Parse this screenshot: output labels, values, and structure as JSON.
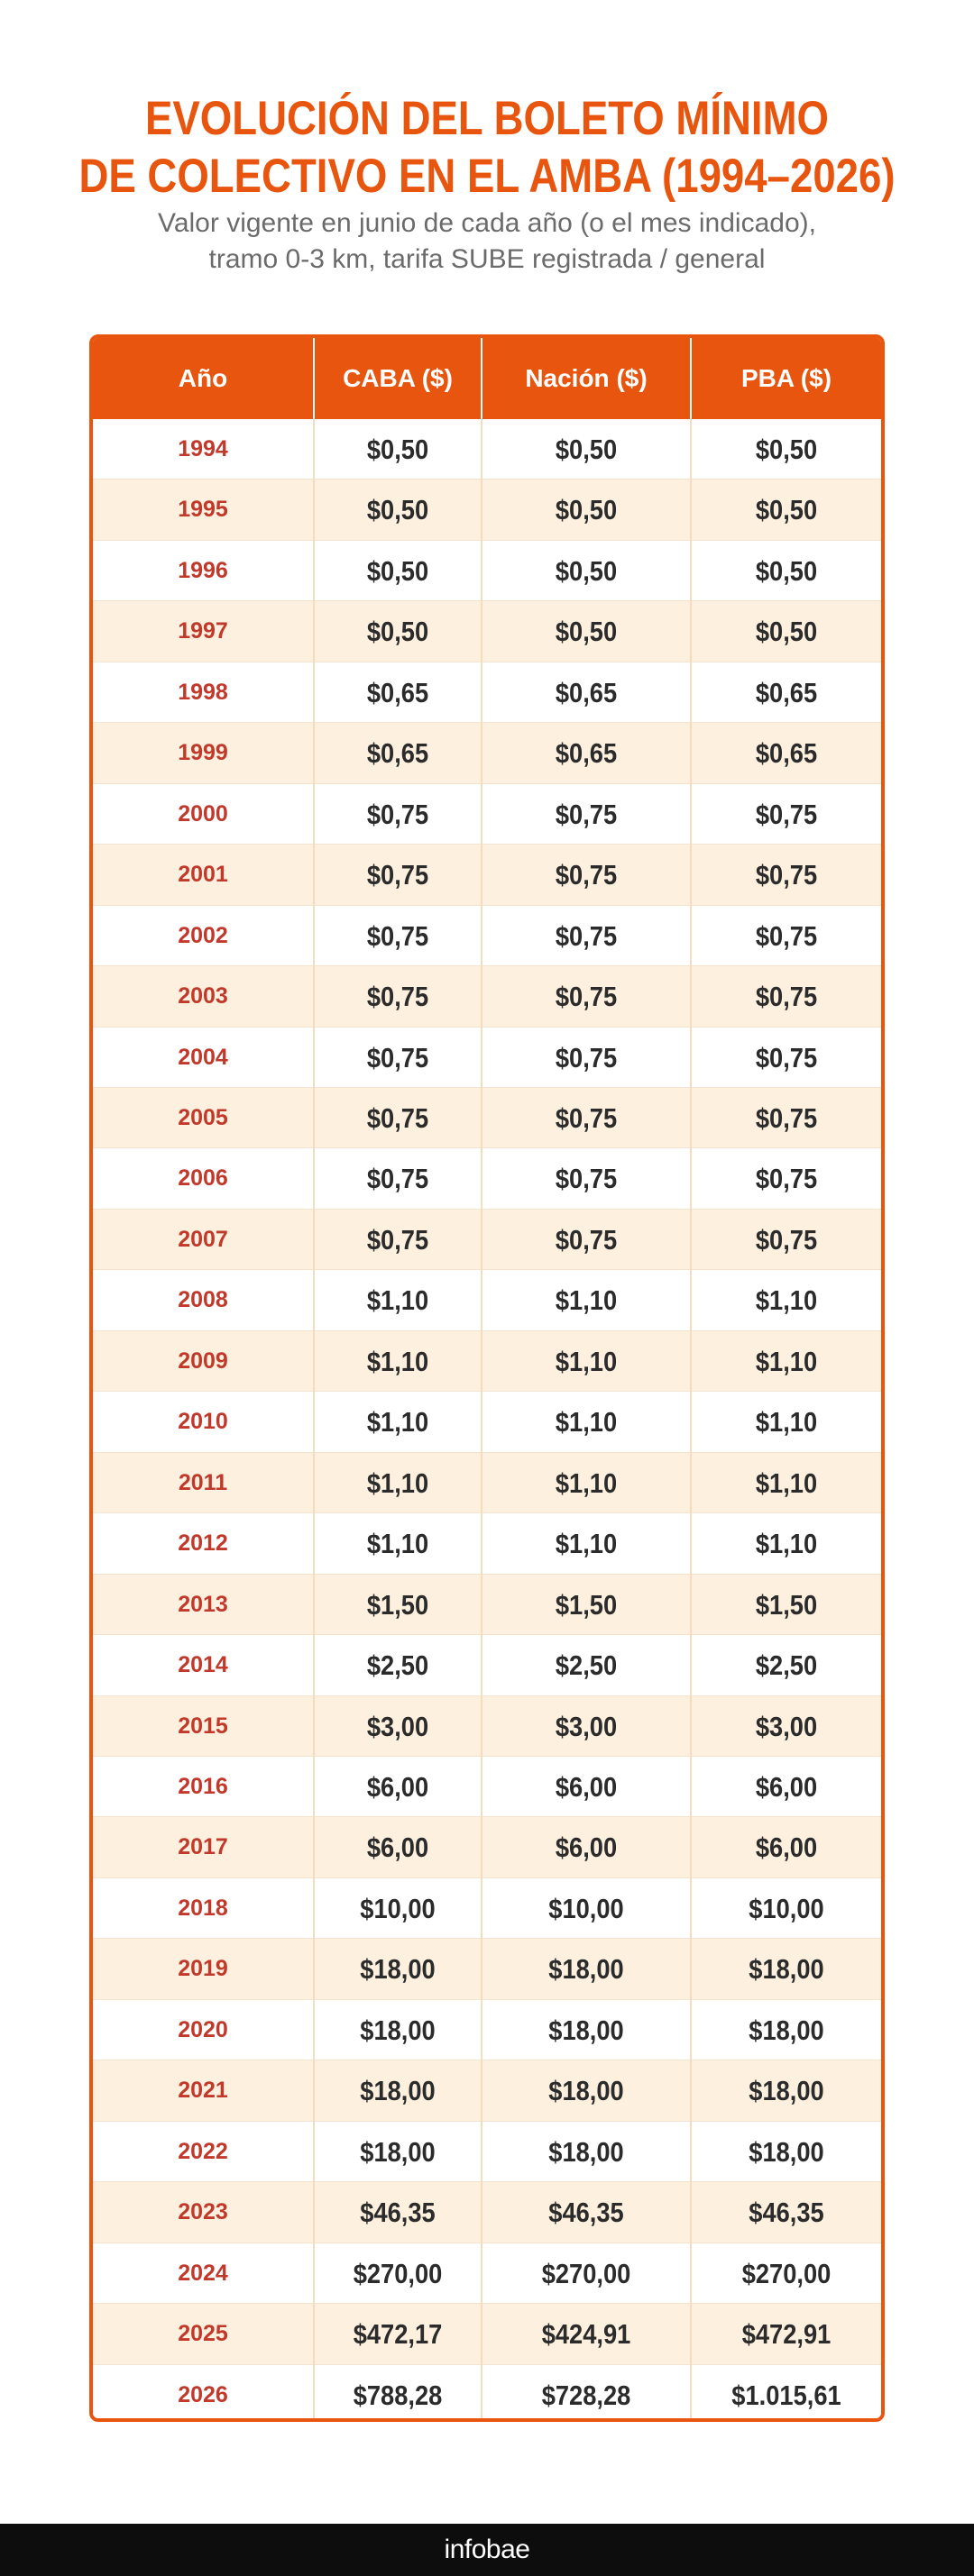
{
  "header": {
    "title_line1": "EVOLUCIÓN DEL BOLETO MÍNIMO",
    "title_line2": "DE COLECTIVO EN EL AMBA (1994–2026)",
    "subtitle_line1": "Valor vigente en junio de cada año (o el mes indicado),",
    "subtitle_line2": "tramo 0-3 km, tarifa SUBE registrada / general"
  },
  "chart_data": {
    "type": "table",
    "title": "EVOLUCIÓN DEL BOLETO MÍNIMO DE COLECTIVO EN EL AMBA (1994–2026)",
    "subtitle": "Valor vigente en junio de cada año (o el mes indicado), tramo 0-3 km, tarifa SUBE registrada / general",
    "columns": [
      "Año",
      "CABA ($)",
      "Nación ($)",
      "PBA ($)"
    ],
    "rows": [
      [
        "1994",
        "$0,50",
        "$0,50",
        "$0,50"
      ],
      [
        "1995",
        "$0,50",
        "$0,50",
        "$0,50"
      ],
      [
        "1996",
        "$0,50",
        "$0,50",
        "$0,50"
      ],
      [
        "1997",
        "$0,50",
        "$0,50",
        "$0,50"
      ],
      [
        "1998",
        "$0,65",
        "$0,65",
        "$0,65"
      ],
      [
        "1999",
        "$0,65",
        "$0,65",
        "$0,65"
      ],
      [
        "2000",
        "$0,75",
        "$0,75",
        "$0,75"
      ],
      [
        "2001",
        "$0,75",
        "$0,75",
        "$0,75"
      ],
      [
        "2002",
        "$0,75",
        "$0,75",
        "$0,75"
      ],
      [
        "2003",
        "$0,75",
        "$0,75",
        "$0,75"
      ],
      [
        "2004",
        "$0,75",
        "$0,75",
        "$0,75"
      ],
      [
        "2005",
        "$0,75",
        "$0,75",
        "$0,75"
      ],
      [
        "2006",
        "$0,75",
        "$0,75",
        "$0,75"
      ],
      [
        "2007",
        "$0,75",
        "$0,75",
        "$0,75"
      ],
      [
        "2008",
        "$1,10",
        "$1,10",
        "$1,10"
      ],
      [
        "2009",
        "$1,10",
        "$1,10",
        "$1,10"
      ],
      [
        "2010",
        "$1,10",
        "$1,10",
        "$1,10"
      ],
      [
        "2011",
        "$1,10",
        "$1,10",
        "$1,10"
      ],
      [
        "2012",
        "$1,10",
        "$1,10",
        "$1,10"
      ],
      [
        "2013",
        "$1,50",
        "$1,50",
        "$1,50"
      ],
      [
        "2014",
        "$2,50",
        "$2,50",
        "$2,50"
      ],
      [
        "2015",
        "$3,00",
        "$3,00",
        "$3,00"
      ],
      [
        "2016",
        "$6,00",
        "$6,00",
        "$6,00"
      ],
      [
        "2017",
        "$6,00",
        "$6,00",
        "$6,00"
      ],
      [
        "2018",
        "$10,00",
        "$10,00",
        "$10,00"
      ],
      [
        "2019",
        "$18,00",
        "$18,00",
        "$18,00"
      ],
      [
        "2020",
        "$18,00",
        "$18,00",
        "$18,00"
      ],
      [
        "2021",
        "$18,00",
        "$18,00",
        "$18,00"
      ],
      [
        "2022",
        "$18,00",
        "$18,00",
        "$18,00"
      ],
      [
        "2023",
        "$46,35",
        "$46,35",
        "$46,35"
      ],
      [
        "2024",
        "$270,00",
        "$270,00",
        "$270,00"
      ],
      [
        "2025",
        "$472,17",
        "$424,91",
        "$472,91"
      ],
      [
        "2026",
        "$788,28",
        "$728,28",
        "$1.015,61"
      ]
    ]
  },
  "colors": {
    "accent": "#e8550e",
    "year_text": "#c0392b",
    "value_text": "#2b2b2b",
    "stripe": "#fdf0de",
    "footer_bg": "#0d0d0d"
  },
  "footer": {
    "brand": "infobae"
  }
}
